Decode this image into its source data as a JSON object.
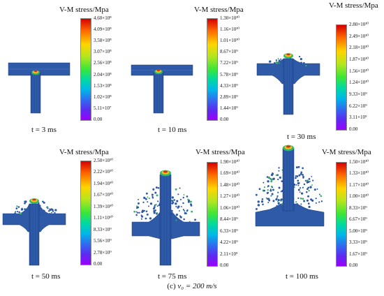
{
  "panels": [
    {
      "title": "V-M stress/Mpa",
      "time_label": "t = 3 ms",
      "ticks": [
        "4.60×10⁸",
        "4.09×10⁸",
        "3.58×10⁸",
        "3.07×10⁸",
        "2.56×10⁸",
        "2.04×10⁸",
        "1.53×10⁸",
        "1.02×10⁸",
        "5.11×10⁷",
        "0.00"
      ]
    },
    {
      "title": "V-M stress/Mpa",
      "time_label": "t = 10 ms",
      "ticks": [
        "1.30×10¹⁰",
        "1.16×10¹⁰",
        "1.01×10¹⁰",
        "8.67×10⁹",
        "7.22×10⁹",
        "5.78×10⁹",
        "4.33×10⁹",
        "2.89×10⁹",
        "1.44×10⁹",
        "0.00"
      ]
    },
    {
      "title": "V-M stress/Mpa",
      "time_label": "t = 30 ms",
      "ticks": [
        "2.80×10¹⁰",
        "2.49×10¹⁰",
        "2.18×10¹⁰",
        "1.87×10¹⁰",
        "1.56×10¹⁰",
        "1.24×10¹⁰",
        "9.33×10⁹",
        "6.22×10⁹",
        "3.11×10⁹",
        "0.00"
      ]
    },
    {
      "title": "V-M stress/Mpa",
      "time_label": "t = 50 ms",
      "ticks": [
        "2.50×10¹⁰",
        "2.22×10¹⁰",
        "1.94×10¹⁰",
        "1.67×10¹⁰",
        "1.39×10¹⁰",
        "1.11×10¹⁰",
        "8.33×10⁹",
        "5.56×10⁹",
        "2.78×10⁹",
        "0.00"
      ]
    },
    {
      "title": "V-M stress/Mpa",
      "time_label": "t = 75 ms",
      "ticks": [
        "1.90×10¹⁰",
        "1.69×10¹⁰",
        "1.48×10¹⁰",
        "1.27×10¹⁰",
        "1.06×10¹⁰",
        "8.44×10⁹",
        "6.33×10⁹",
        "4.22×10⁹",
        "2.11×10⁹",
        "0.00"
      ]
    },
    {
      "title": "V-M stress/Mpa",
      "time_label": "t = 100 ms",
      "ticks": [
        "1.50×10¹⁰",
        "1.33×10¹⁰",
        "1.17×10¹⁰",
        "1.00×10¹⁰",
        "8.33×10⁹",
        "6.67×10⁹",
        "5.00×10⁹",
        "3.33×10⁹",
        "1.67×10⁹",
        "0.00"
      ]
    }
  ],
  "caption": {
    "prefix": "(c)",
    "velocity": "v₀ = 200 m/s"
  }
}
